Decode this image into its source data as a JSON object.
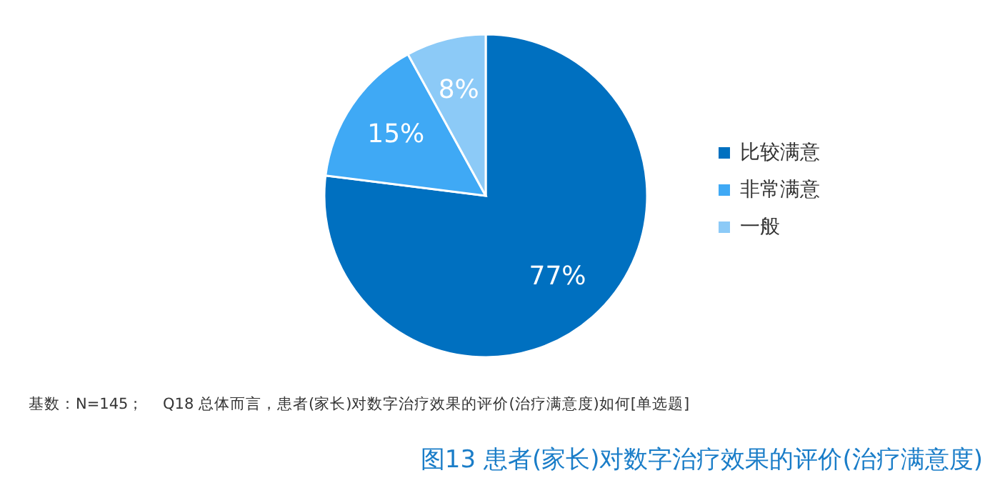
{
  "chart_data": {
    "type": "pie",
    "title": "图13  患者(家长)对数字治疗效果的评价(治疗满意度)",
    "categories": [
      "比较满意",
      "非常满意",
      "一般"
    ],
    "values": [
      77,
      15,
      8
    ],
    "colors": [
      "#0070c0",
      "#3fa9f5",
      "#8ccaf7"
    ],
    "value_labels": [
      "77%",
      "15%",
      "8%"
    ],
    "legend": "right",
    "annotations": [
      "基数：N=145；    Q18 总体而言，患者(家长)对数字治疗效果的评价(治疗满意度)如何[单选题]"
    ]
  }
}
